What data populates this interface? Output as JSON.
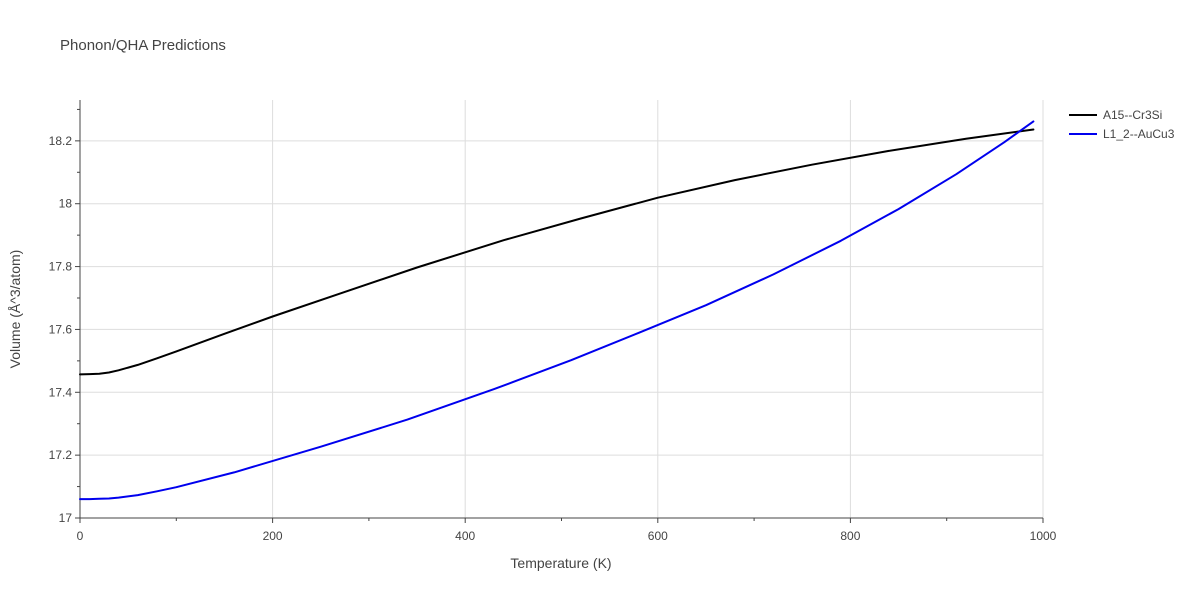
{
  "chart_data": {
    "type": "line",
    "title": "Phonon/QHA Predictions",
    "xlabel": "Temperature (K)",
    "ylabel": "Volume (Å^3/atom)",
    "xlim": [
      0,
      1000
    ],
    "ylim": [
      17.0,
      18.33
    ],
    "xticks": [
      0,
      200,
      400,
      600,
      800,
      1000
    ],
    "xtick_labels": [
      "0",
      "200",
      "400",
      "600",
      "800",
      "1000"
    ],
    "yticks": [
      17.0,
      17.2,
      17.4,
      17.6,
      17.8,
      18.0,
      18.2
    ],
    "ytick_labels": [
      "17",
      "17.2",
      "17.4",
      "17.6",
      "17.8",
      "18",
      "18.2"
    ],
    "grid": true,
    "legend_position": "top-right",
    "series": [
      {
        "name": "A15--Cr3Si",
        "color": "#000000",
        "x": [
          0,
          10,
          20,
          30,
          40,
          60,
          80,
          100,
          150,
          200,
          270,
          350,
          440,
          520,
          600,
          680,
          760,
          840,
          920,
          990
        ],
        "y": [
          17.457,
          17.458,
          17.459,
          17.463,
          17.47,
          17.487,
          17.508,
          17.53,
          17.586,
          17.641,
          17.714,
          17.797,
          17.884,
          17.953,
          18.019,
          18.075,
          18.124,
          18.168,
          18.207,
          18.236
        ]
      },
      {
        "name": "L1_2--AuCu3",
        "color": "#0000ee",
        "x": [
          0,
          10,
          20,
          30,
          40,
          60,
          80,
          100,
          160,
          250,
          340,
          430,
          510,
          580,
          650,
          720,
          790,
          850,
          910,
          960,
          990
        ],
        "y": [
          17.06,
          17.06,
          17.061,
          17.062,
          17.065,
          17.073,
          17.085,
          17.098,
          17.145,
          17.227,
          17.313,
          17.41,
          17.502,
          17.589,
          17.677,
          17.775,
          17.882,
          17.983,
          18.094,
          18.196,
          18.262
        ]
      }
    ]
  }
}
